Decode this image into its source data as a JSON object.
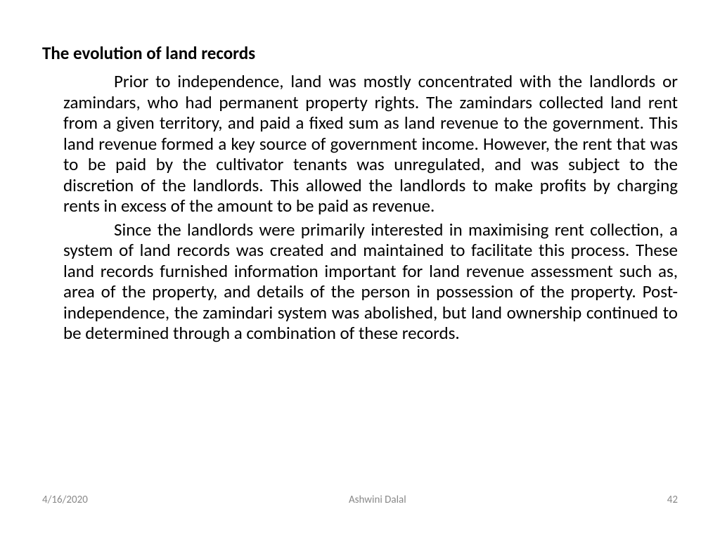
{
  "slide": {
    "heading": "The evolution of land records",
    "paragraphs": [
      "Prior to independence, land was mostly concentrated with the landlords or zamindars, who had permanent property rights.  The zamindars collected land rent from a given territory, and paid a fixed sum as land revenue to the government.  This land revenue formed a key source of government income.  However, the rent that was to be paid by the cultivator tenants was unregulated, and was subject to the discretion of the landlords.  This allowed the landlords to make profits by charging rents in excess of the amount to be paid as revenue.",
      "Since the landlords were primarily interested in maximising rent collection, a system of land records was created and maintained to facilitate this process.  These land records furnished information important for land revenue assessment such as, area of the property, and details of the person in possession of the property.  Post-independence, the zamindari system was abolished, but land ownership continued to be determined through a combination of these records."
    ]
  },
  "footer": {
    "date": "4/16/2020",
    "author": "Ashwini Dalal",
    "page_number": "42"
  },
  "styling": {
    "background_color": "#ffffff",
    "text_color": "#000000",
    "footer_color": "#898989",
    "heading_fontsize": 25,
    "body_fontsize": 25,
    "footer_fontsize": 15,
    "heading_weight": "bold",
    "font_family": "Calibri",
    "text_align": "justify",
    "text_indent": 72
  }
}
